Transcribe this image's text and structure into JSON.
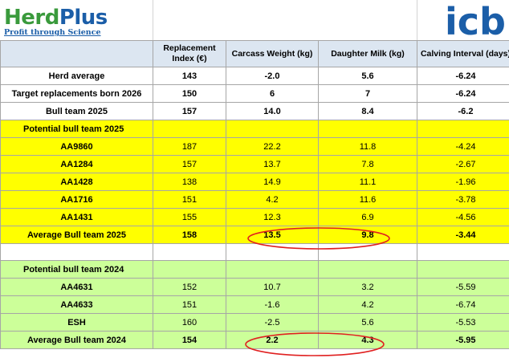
{
  "logo": {
    "brand_herd": "Herd",
    "brand_plus": "Plus",
    "tagline": "Profit through Science",
    "right_logo_text": "icb"
  },
  "headers": {
    "c1": "",
    "c2": "Replacement Index (€)",
    "c3": "Carcass Weight (kg)",
    "c4": "Daughter Milk (kg)",
    "c5": "Calving Interval (days)"
  },
  "rows_top": [
    {
      "label": "Herd average",
      "ri": "143",
      "cw": "-2.0",
      "dm": "5.6",
      "ci": "-6.24"
    },
    {
      "label": "Target replacements born 2026",
      "ri": "150",
      "cw": "6",
      "dm": "7",
      "ci": "-6.24"
    },
    {
      "label": "Bull team 2025",
      "ri": "157",
      "cw": "14.0",
      "dm": "8.4",
      "ci": "-6.2"
    }
  ],
  "section_2025": {
    "title": "Potential bull team 2025",
    "rows": [
      {
        "label": "AA9860",
        "ri": "187",
        "cw": "22.2",
        "dm": "11.8",
        "ci": "-4.24"
      },
      {
        "label": "AA1284",
        "ri": "157",
        "cw": "13.7",
        "dm": "7.8",
        "ci": "-2.67"
      },
      {
        "label": "AA1428",
        "ri": "138",
        "cw": "14.9",
        "dm": "11.1",
        "ci": "-1.96"
      },
      {
        "label": "AA1716",
        "ri": "151",
        "cw": "4.2",
        "dm": "11.6",
        "ci": "-3.78"
      },
      {
        "label": "AA1431",
        "ri": "155",
        "cw": "12.3",
        "dm": "6.9",
        "ci": "-4.56"
      }
    ],
    "average": {
      "label": "Average Bull team 2025",
      "ri": "158",
      "cw": "13.5",
      "dm": "9.8",
      "ci": "-3.44"
    }
  },
  "section_2024": {
    "title": "Potential bull team 2024",
    "rows": [
      {
        "label": "AA4631",
        "ri": "152",
        "cw": "10.7",
        "dm": "3.2",
        "ci": "-5.59"
      },
      {
        "label": "AA4633",
        "ri": "151",
        "cw": "-1.6",
        "dm": "4.2",
        "ci": "-6.74"
      },
      {
        "label": "ESH",
        "ri": "160",
        "cw": "-2.5",
        "dm": "5.6",
        "ci": "-5.53"
      }
    ],
    "average": {
      "label": "Average Bull team 2024",
      "ri": "154",
      "cw": "2.2",
      "dm": "4.3",
      "ci": "-5.95"
    }
  },
  "colors": {
    "header_bg": "#dce6f1",
    "yellow": "#ffff00",
    "green": "#ccff99",
    "highlight_ellipse": "#e02020"
  }
}
